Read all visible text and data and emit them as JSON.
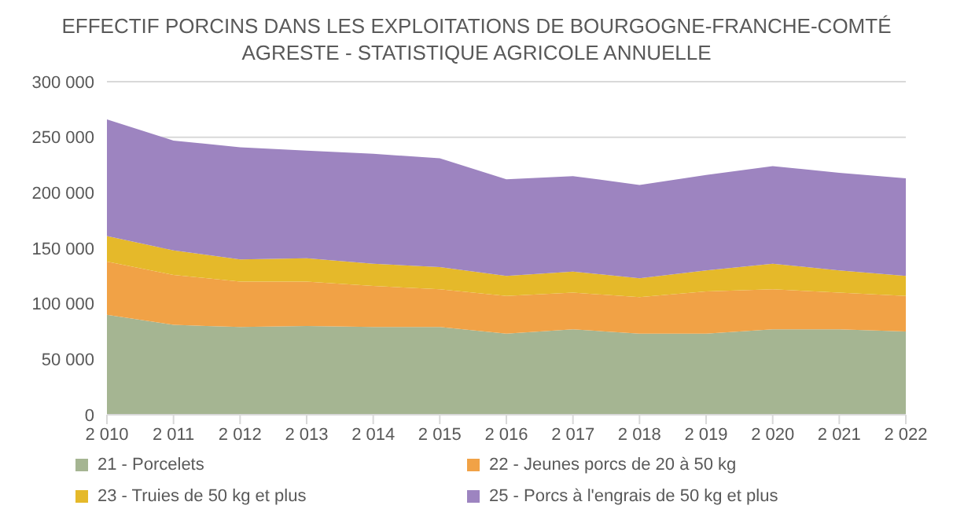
{
  "chart_data": {
    "type": "area",
    "stacked": true,
    "title": "EFFECTIF PORCINS DANS LES EXPLOITATIONS DE BOURGOGNE-FRANCHE-COMTÉ",
    "subtitle": "AGRESTE - STATISTIQUE AGRICOLE ANNUELLE",
    "x": [
      2010,
      2011,
      2012,
      2013,
      2014,
      2015,
      2016,
      2017,
      2018,
      2019,
      2020,
      2021,
      2022
    ],
    "xlim": [
      2010,
      2022
    ],
    "xticks": [
      {
        "value": 2010,
        "label": "2 010"
      },
      {
        "value": 2011,
        "label": "2 011"
      },
      {
        "value": 2012,
        "label": "2 012"
      },
      {
        "value": 2013,
        "label": "2 013"
      },
      {
        "value": 2014,
        "label": "2 014"
      },
      {
        "value": 2015,
        "label": "2 015"
      },
      {
        "value": 2016,
        "label": "2 016"
      },
      {
        "value": 2017,
        "label": "2 017"
      },
      {
        "value": 2018,
        "label": "2 018"
      },
      {
        "value": 2019,
        "label": "2 019"
      },
      {
        "value": 2020,
        "label": "2 020"
      },
      {
        "value": 2021,
        "label": "2 021"
      },
      {
        "value": 2022,
        "label": "2 022"
      }
    ],
    "ylim": [
      0,
      300000
    ],
    "yticks": [
      0,
      {
        "value": 50000,
        "label": "50 000"
      },
      {
        "value": 100000,
        "label": "100 000"
      },
      {
        "value": 150000,
        "label": "150 000"
      },
      {
        "value": 200000,
        "label": "200 000"
      },
      {
        "value": 250000,
        "label": "250 000"
      },
      {
        "value": 300000,
        "label": "300 000"
      }
    ],
    "grid": "y",
    "legend": "bottom",
    "series": [
      {
        "name": "21 - Porcelets",
        "color": "#a5b592",
        "values": [
          90000,
          81000,
          79000,
          80000,
          79000,
          79000,
          73000,
          77000,
          73000,
          73000,
          77000,
          77000,
          75000
        ]
      },
      {
        "name": "22 - Jeunes porcs de 20 à 50 kg",
        "color": "#f1a246",
        "values": [
          48000,
          45000,
          41000,
          40000,
          37000,
          34000,
          34000,
          33000,
          33000,
          38000,
          36000,
          33000,
          32000
        ]
      },
      {
        "name": "23 - Truies de 50 kg et plus",
        "color": "#e5b92a",
        "values": [
          23000,
          22000,
          20000,
          21000,
          20000,
          20000,
          18000,
          19000,
          17000,
          19000,
          23000,
          20000,
          18000
        ]
      },
      {
        "name": "25 - Porcs à l'engrais de 50 kg et plus",
        "color": "#9d84c0",
        "values": [
          105000,
          99000,
          101000,
          97000,
          99000,
          98000,
          87000,
          86000,
          84000,
          86000,
          88000,
          88000,
          88000
        ]
      }
    ]
  }
}
